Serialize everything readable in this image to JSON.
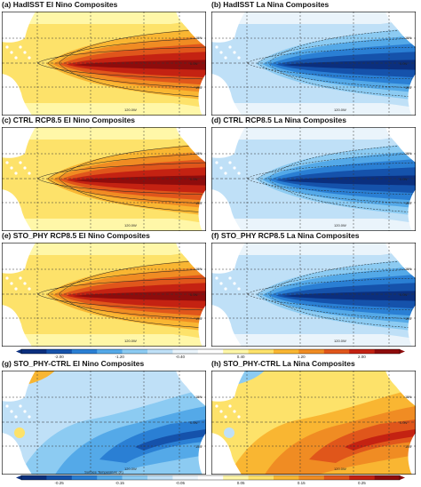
{
  "panels": [
    {
      "id": "a",
      "title": "(a) HadISST El Nino Composites",
      "phase": "nino"
    },
    {
      "id": "b",
      "title": "(b) HadISST La Nina Composites",
      "phase": "nina"
    },
    {
      "id": "c",
      "title": "(c) CTRL RCP8.5 El Nino Composites",
      "phase": "nino"
    },
    {
      "id": "d",
      "title": "(d) CTRL RCP8.5 La Nina Composites",
      "phase": "nina"
    },
    {
      "id": "e",
      "title": "(e) STO_PHY RCP8.5 El Nino Composites",
      "phase": "nino"
    },
    {
      "id": "f",
      "title": "(f) STO_PHY RCP8.5 La Nina Composites",
      "phase": "nina"
    },
    {
      "id": "g",
      "title": "(g) STO_PHY-CTRL El Nino Composites",
      "phase": "diff_nino"
    },
    {
      "id": "h",
      "title": "(h) STO_PHY-CTRL La Nina Composites",
      "phase": "diff_nina"
    }
  ],
  "axis_labels": {
    "lat_n": "15N",
    "lat_eq": "0.0N",
    "lat_s": "15S",
    "lon": "120.0W",
    "lon_alt": "180.0W"
  },
  "colorbar_main": {
    "ticks": [
      "-2.00",
      "-1.20",
      "-0.40",
      "0.40",
      "1.20",
      "2.00"
    ]
  },
  "colorbar_diff": {
    "ticks": [
      "-0.25",
      "-0.15",
      "-0.05",
      "0.05",
      "0.15",
      "0.25"
    ],
    "title": "Surface Temperature (K)"
  },
  "palette": {
    "warm": [
      "#fff7a8",
      "#fde26a",
      "#f9b632",
      "#f08c23",
      "#e0561b",
      "#c42212",
      "#8e0c0c"
    ],
    "cool": [
      "#eaf4fb",
      "#bfe0f7",
      "#8ccbf2",
      "#54a9e8",
      "#2a7fd4",
      "#1552ab",
      "#0b2f7e"
    ],
    "land": "#ffffff",
    "grid": "#333333"
  }
}
